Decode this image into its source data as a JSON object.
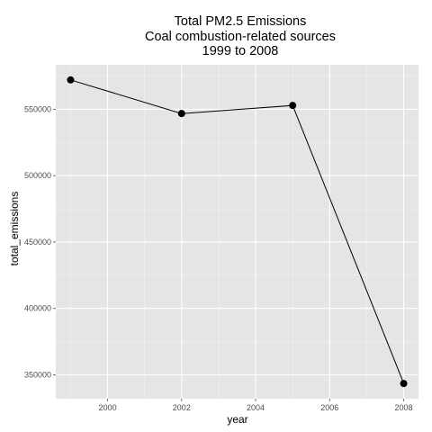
{
  "chart_data": {
    "type": "line",
    "title_lines": [
      "Total PM2.5 Emissions",
      "Coal combustion-related sources",
      "1999 to 2008"
    ],
    "xlabel": "year",
    "ylabel": "total_emissions",
    "x": [
      1999,
      2002,
      2005,
      2008
    ],
    "series": [
      {
        "values": [
          572126,
          546789,
          552881,
          343432
        ]
      }
    ],
    "xlim": [
      1998.6,
      2008.4
    ],
    "ylim": [
      332000,
      583500
    ],
    "xticks": [
      2000,
      2002,
      2004,
      2006,
      2008
    ],
    "xtick_labels": [
      "2000",
      "2002",
      "2004",
      "2006",
      "2008"
    ],
    "yticks": [
      350000,
      400000,
      450000,
      500000,
      550000
    ],
    "ytick_labels": [
      "350000",
      "400000",
      "450000",
      "500000",
      "550000"
    ],
    "grid": true,
    "panel_background": "#e5e5e5",
    "grid_color": "#ffffff",
    "line_color": "#000000",
    "point_color": "#000000"
  }
}
